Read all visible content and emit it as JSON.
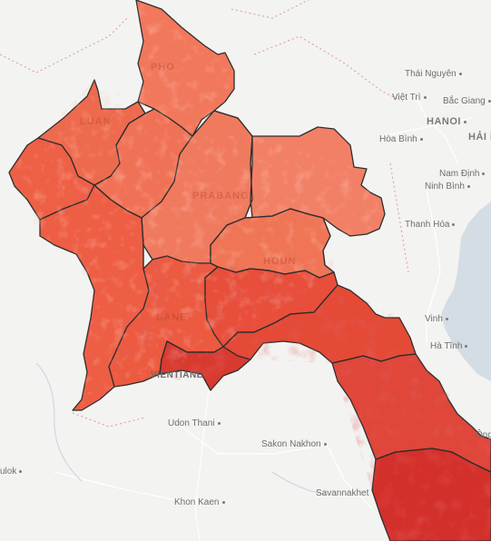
{
  "places": [
    {
      "id": "thai-nguyen",
      "label": "Thái Nguyên",
      "dot": true
    },
    {
      "id": "viet-tri",
      "label": "Việt Trì",
      "dot": true
    },
    {
      "id": "bac-giang",
      "label": "Bắc Giang",
      "dot": true
    },
    {
      "id": "hanoi",
      "label": "HANOI",
      "dot": true
    },
    {
      "id": "hai-phong",
      "label": "HẢI P",
      "dot": false
    },
    {
      "id": "hoa-binh",
      "label": "Hòa Bình",
      "dot": true
    },
    {
      "id": "nam-dinh",
      "label": "Nam Định",
      "dot": true
    },
    {
      "id": "ninh-binh",
      "label": "Ninh Bình",
      "dot": true
    },
    {
      "id": "thanh-hoa",
      "label": "Thanh Hóa",
      "dot": true
    },
    {
      "id": "vinh",
      "label": "Vinh",
      "dot": true
    },
    {
      "id": "ha-tinh",
      "label": "Hà Tĩnh",
      "dot": true
    },
    {
      "id": "vientiane",
      "label": "VIENTIANE",
      "dot": false
    },
    {
      "id": "udon-thani",
      "label": "Udon Thani",
      "dot": true
    },
    {
      "id": "sakon-nakhon",
      "label": "Sakon Nakhon",
      "dot": true
    },
    {
      "id": "savannakhet",
      "label": "Savannakhet",
      "dot": false
    },
    {
      "id": "khon-kaen",
      "label": "Khon Kaen",
      "dot": true
    },
    {
      "id": "ulok",
      "label": "ulok",
      "dot": true
    },
    {
      "id": "ong",
      "label": "Ông",
      "dot": false
    }
  ],
  "colors": {
    "land": "#f3f3f1",
    "water": "#d4dde4",
    "roads": "#ffffff",
    "border": "#3a3a3a",
    "choropleth_light": "#f2785c",
    "choropleth_mid": "#ee5e45",
    "choropleth_dark": "#d9342e"
  }
}
